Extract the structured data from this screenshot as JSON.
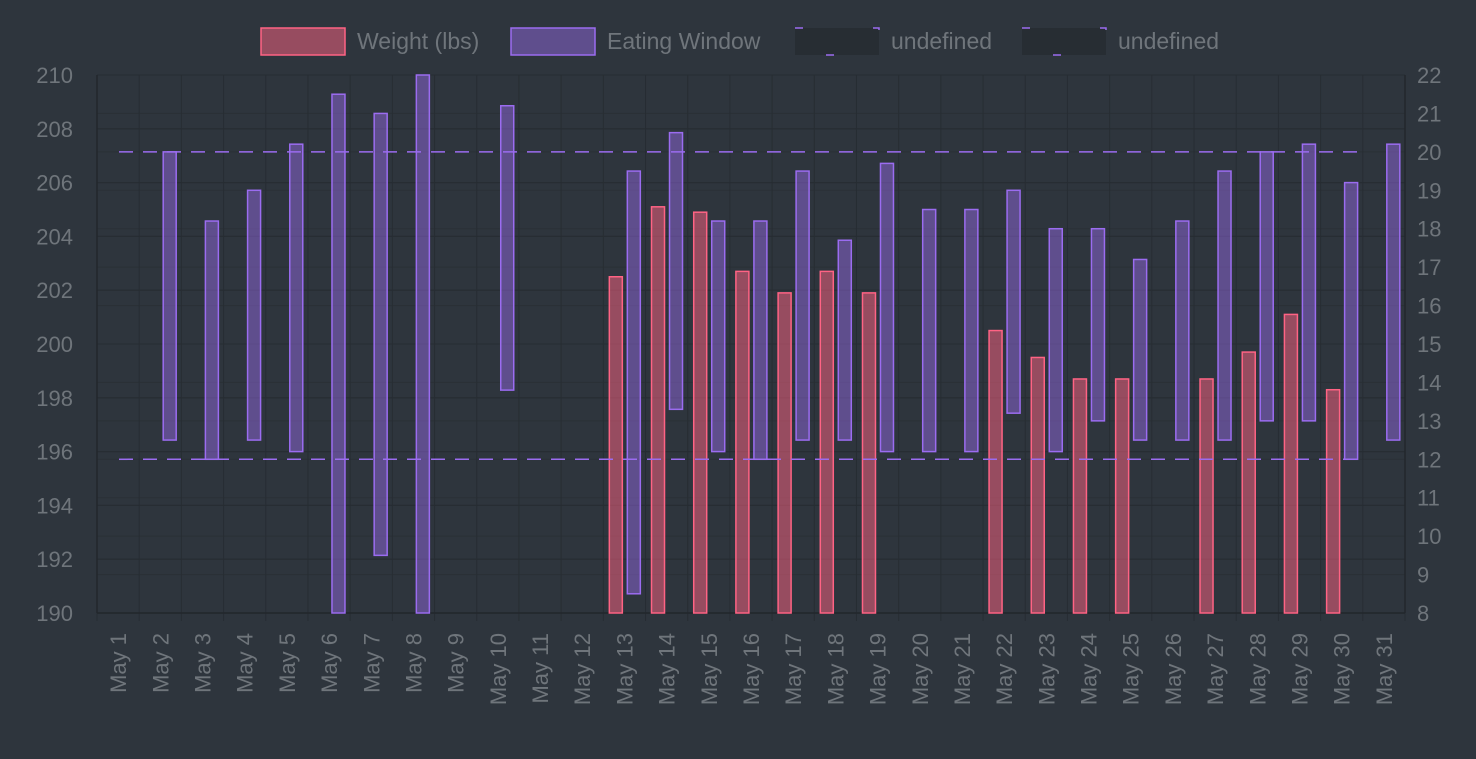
{
  "chart_data": {
    "type": "bar",
    "categories": [
      "May 1",
      "May 2",
      "May 3",
      "May 4",
      "May 5",
      "May 6",
      "May 7",
      "May 8",
      "May 9",
      "May 10",
      "May 11",
      "May 12",
      "May 13",
      "May 14",
      "May 15",
      "May 16",
      "May 17",
      "May 18",
      "May 19",
      "May 20",
      "May 21",
      "May 22",
      "May 23",
      "May 24",
      "May 25",
      "May 26",
      "May 27",
      "May 28",
      "May 29",
      "May 30",
      "May 31"
    ],
    "y_left": {
      "ylim": [
        190,
        210
      ],
      "step": 2
    },
    "y_right": {
      "ylim": [
        8,
        22
      ],
      "step": 1
    },
    "grid": true,
    "legend_position": "top",
    "series": [
      {
        "name": "Weight (lbs)",
        "axis": "left",
        "kind": "bar",
        "color": "#ff6384",
        "values": [
          null,
          null,
          null,
          null,
          null,
          null,
          null,
          null,
          null,
          null,
          null,
          null,
          202.5,
          205.1,
          204.9,
          202.7,
          201.9,
          202.7,
          201.9,
          null,
          null,
          200.5,
          199.5,
          198.7,
          198.7,
          null,
          198.7,
          199.7,
          201.1,
          198.3,
          null
        ]
      },
      {
        "name": "Eating Window",
        "axis": "right",
        "kind": "floating-bar",
        "color": "#9b6cf0",
        "ranges": [
          null,
          [
            12.5,
            20
          ],
          [
            12,
            18.2
          ],
          [
            12.5,
            19
          ],
          [
            12.2,
            20.2
          ],
          [
            8,
            21.5
          ],
          [
            9.5,
            21
          ],
          [
            8,
            22
          ],
          null,
          [
            13.8,
            21.2
          ],
          null,
          null,
          [
            8.5,
            19.5
          ],
          [
            13.3,
            20.5
          ],
          [
            12.2,
            18.2
          ],
          [
            12,
            18.2
          ],
          [
            12.5,
            19.5
          ],
          [
            12.5,
            17.7
          ],
          [
            12.2,
            19.7
          ],
          [
            12.2,
            18.5
          ],
          [
            12.2,
            18.5
          ],
          [
            13.2,
            19
          ],
          [
            12.2,
            18
          ],
          [
            13,
            18
          ],
          [
            12.5,
            17.2
          ],
          [
            12.5,
            18.2
          ],
          [
            12.5,
            19.5
          ],
          [
            13,
            20
          ],
          [
            13,
            20.2
          ],
          [
            12,
            19.2
          ],
          [
            12.5,
            20.2
          ]
        ]
      },
      {
        "name": "undefined",
        "axis": "right",
        "kind": "dashed-line",
        "color": "#9b6cf0",
        "value": 20
      },
      {
        "name": "undefined",
        "axis": "right",
        "kind": "dashed-line",
        "color": "#9b6cf0",
        "value": 12
      }
    ]
  }
}
